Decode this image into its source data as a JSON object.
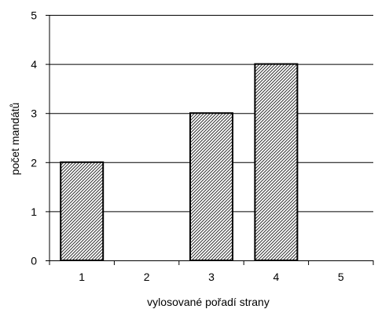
{
  "chart_data": {
    "type": "bar",
    "categories": [
      "1",
      "2",
      "3",
      "4",
      "5"
    ],
    "values": [
      2,
      0,
      3,
      4,
      0
    ],
    "title": "",
    "xlabel": "vylosované pořadí strany",
    "ylabel": "počet mandátů",
    "ylim": [
      0,
      5
    ],
    "yticks": [
      "0",
      "1",
      "2",
      "3",
      "4",
      "5"
    ],
    "grid": true,
    "legend": "none",
    "bar_fill": "hatched",
    "colors": {
      "bar_stroke": "#000000",
      "hatch": "#333333",
      "grid": "#000000",
      "background": "#ffffff"
    }
  }
}
